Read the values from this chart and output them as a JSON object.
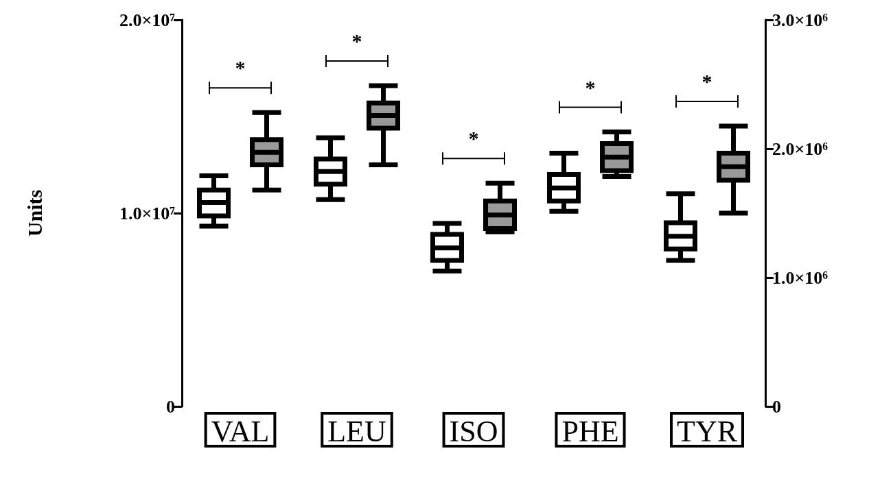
{
  "chart_data": {
    "type": "box",
    "ylabel": "Units",
    "categories": [
      "VAL",
      "LEU",
      "ISO",
      "PHE",
      "TYR"
    ],
    "series": [
      {
        "color": "#ffffff",
        "boxes": [
          {
            "low": 9330000,
            "q1": 9860000,
            "median": 10550000,
            "q3": 11200000,
            "high": 11930000
          },
          {
            "low": 10700000,
            "q1": 11500000,
            "median": 12150000,
            "q3": 12800000,
            "high": 13900000
          },
          {
            "low": 7000000,
            "q1": 7550000,
            "median": 8200000,
            "q3": 8900000,
            "high": 9470000
          },
          {
            "low": 10100000,
            "q1": 10630000,
            "median": 11300000,
            "q3": 12000000,
            "high": 13100000
          },
          {
            "low": 7550000,
            "q1": 8150000,
            "median": 8800000,
            "q3": 9500000,
            "high": 11000000
          }
        ]
      },
      {
        "color": "#999999",
        "boxes": [
          {
            "low": 11200000,
            "q1": 12500000,
            "median": 13150000,
            "q3": 13800000,
            "high": 15200000
          },
          {
            "low": 12500000,
            "q1": 14400000,
            "median": 15050000,
            "q3": 15700000,
            "high": 16600000
          },
          {
            "low": 9030000,
            "q1": 9200000,
            "median": 9900000,
            "q3": 10630000,
            "high": 11550000
          },
          {
            "low": 11900000,
            "q1": 12200000,
            "median": 12900000,
            "q3": 13600000,
            "high": 14200000
          },
          {
            "low": 10000000,
            "q1": 11700000,
            "median": 12400000,
            "q3": 13100000,
            "high": 14500000
          }
        ]
      }
    ],
    "ylim": [
      0,
      20000000
    ],
    "yticks": [
      0,
      {
        "value": 10000000,
        "label": "1.0×10⁷"
      },
      {
        "value": 20000000,
        "label": "2.0×10⁷"
      }
    ],
    "y2lim": [
      0,
      3000000
    ],
    "y2ticks": [
      0,
      {
        "value": 1000000,
        "label": "1.0×10⁶"
      },
      {
        "value": 2000000,
        "label": "2.0×10⁶"
      },
      {
        "value": 3000000,
        "label": "3.0×10⁶"
      }
    ],
    "annotations": [
      "*",
      "*",
      "*",
      "*",
      "*"
    ],
    "grid": false
  }
}
